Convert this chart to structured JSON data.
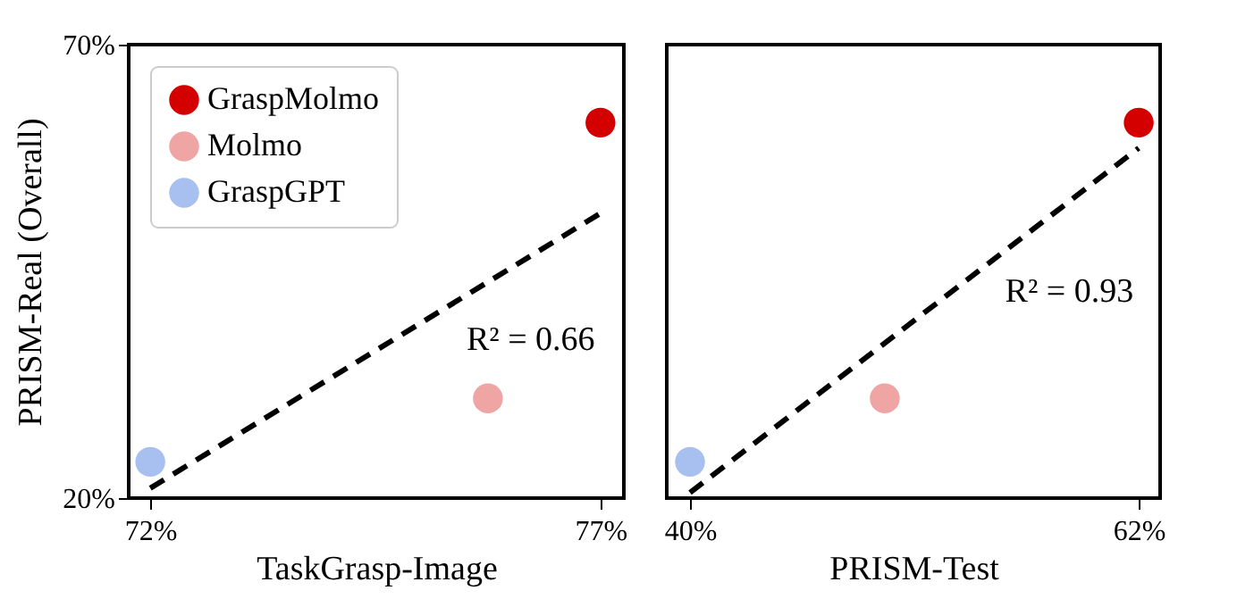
{
  "chart_data": [
    {
      "type": "scatter",
      "xlabel": "TaskGrasp-Image",
      "ylabel": "PRISM-Real (Overall)",
      "xlim": [
        71.76,
        77.26
      ],
      "ylim": [
        20,
        70
      ],
      "xticks": [
        {
          "value": 72,
          "label": "72%"
        },
        {
          "value": 77,
          "label": "77%"
        }
      ],
      "yticks": [
        {
          "value": 20,
          "label": "20%"
        },
        {
          "value": 70,
          "label": "70%"
        }
      ],
      "grid": false,
      "legend": "top left",
      "marker": "circle",
      "series": [
        {
          "name": "GraspMolmo",
          "color": "#d40000",
          "x": [
            77
          ],
          "values": [
            61.4
          ]
        },
        {
          "name": "Molmo",
          "color": "#f0a5a5",
          "x": [
            75.75
          ],
          "values": [
            31.0
          ]
        },
        {
          "name": "GraspGPT",
          "color": "#a8c0f0",
          "x": [
            72
          ],
          "values": [
            24.0
          ]
        },
        {
          "type": "line",
          "marker": "none",
          "color": "#000000",
          "line_style": "dashed",
          "x": [
            72,
            77
          ],
          "values": [
            21.1,
            51.4
          ]
        }
      ],
      "annotations": [
        "R² = 0.66"
      ]
    },
    {
      "type": "scatter",
      "xlabel": "PRISM-Test",
      "xlim": [
        38.86,
        63.05
      ],
      "ylim": [
        20,
        70
      ],
      "xticks": [
        {
          "value": 40,
          "label": "40%"
        },
        {
          "value": 62,
          "label": "62%"
        }
      ],
      "tick_labels": "x",
      "grid": false,
      "marker": "circle",
      "series": [
        {
          "color": "#d40000",
          "x": [
            62
          ],
          "values": [
            61.4
          ]
        },
        {
          "color": "#f0a5a5",
          "x": [
            49.55
          ],
          "values": [
            31.0
          ]
        },
        {
          "color": "#a8c0f0",
          "x": [
            40
          ],
          "values": [
            24.0
          ]
        },
        {
          "type": "line",
          "marker": "none",
          "color": "#000000",
          "line_style": "dashed",
          "x": [
            40,
            62
          ],
          "values": [
            20.6,
            58.6
          ]
        }
      ],
      "annotations": [
        "R² = 0.93"
      ]
    }
  ]
}
